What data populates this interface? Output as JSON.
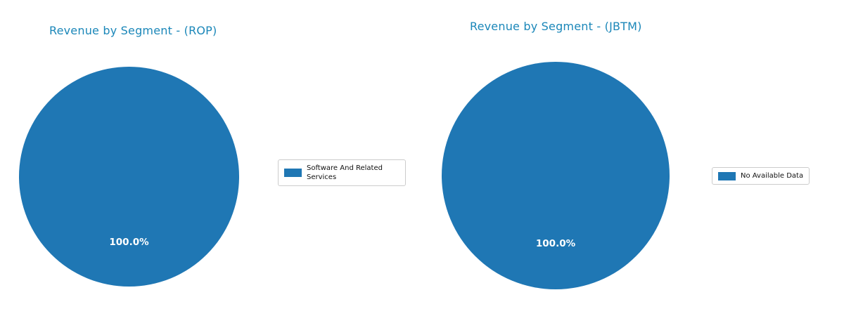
{
  "chart_data": [
    {
      "type": "pie",
      "title": "Revenue by Segment - (ROP)",
      "labels": [
        "Software And Related Services"
      ],
      "values": [
        100.0
      ],
      "data_labels": [
        "100.0%"
      ],
      "slice_colors": [
        "#1f77b4"
      ],
      "legend_position": "right",
      "start_angle": 90
    },
    {
      "type": "pie",
      "title": "Revenue by Segment - (JBTM)",
      "labels": [
        "No Available Data"
      ],
      "values": [
        100.0
      ],
      "data_labels": [
        "100.0%"
      ],
      "slice_colors": [
        "#1f77b4"
      ],
      "legend_position": "right",
      "start_angle": 90
    }
  ],
  "colors": {
    "pie_fill": "#1f77b4",
    "title_text": "#1b87b9",
    "percent_label_text": "#ffffff",
    "legend_border": "#cccccc",
    "background": "#ffffff"
  }
}
